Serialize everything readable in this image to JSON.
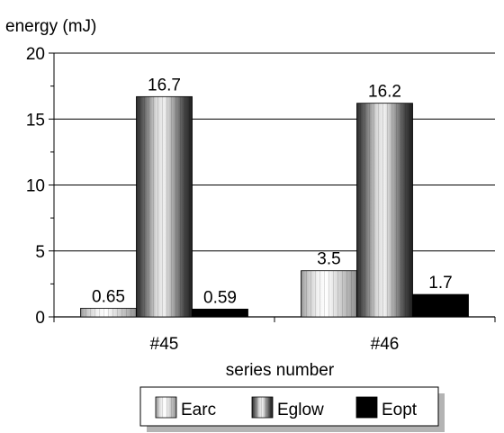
{
  "chart_data": {
    "type": "bar",
    "ylabel": "energy (mJ)",
    "xlabel": "series number",
    "categories": [
      "#45",
      "#46"
    ],
    "series": [
      {
        "name": "Earc",
        "values": [
          0.65,
          3.5
        ],
        "labels": [
          "0.65",
          "3.5"
        ],
        "pattern": "light-cylinder"
      },
      {
        "name": "Eglow",
        "values": [
          16.7,
          16.2
        ],
        "labels": [
          "16.7",
          "16.2"
        ],
        "pattern": "dark-cylinder"
      },
      {
        "name": "Eopt",
        "values": [
          0.59,
          1.7
        ],
        "labels": [
          "0.59",
          "1.7"
        ],
        "pattern": "solid-black"
      }
    ],
    "ylim": [
      0,
      20
    ],
    "yticks": [
      0,
      5,
      10,
      15,
      20
    ],
    "grid": true,
    "legend_position": "bottom"
  }
}
